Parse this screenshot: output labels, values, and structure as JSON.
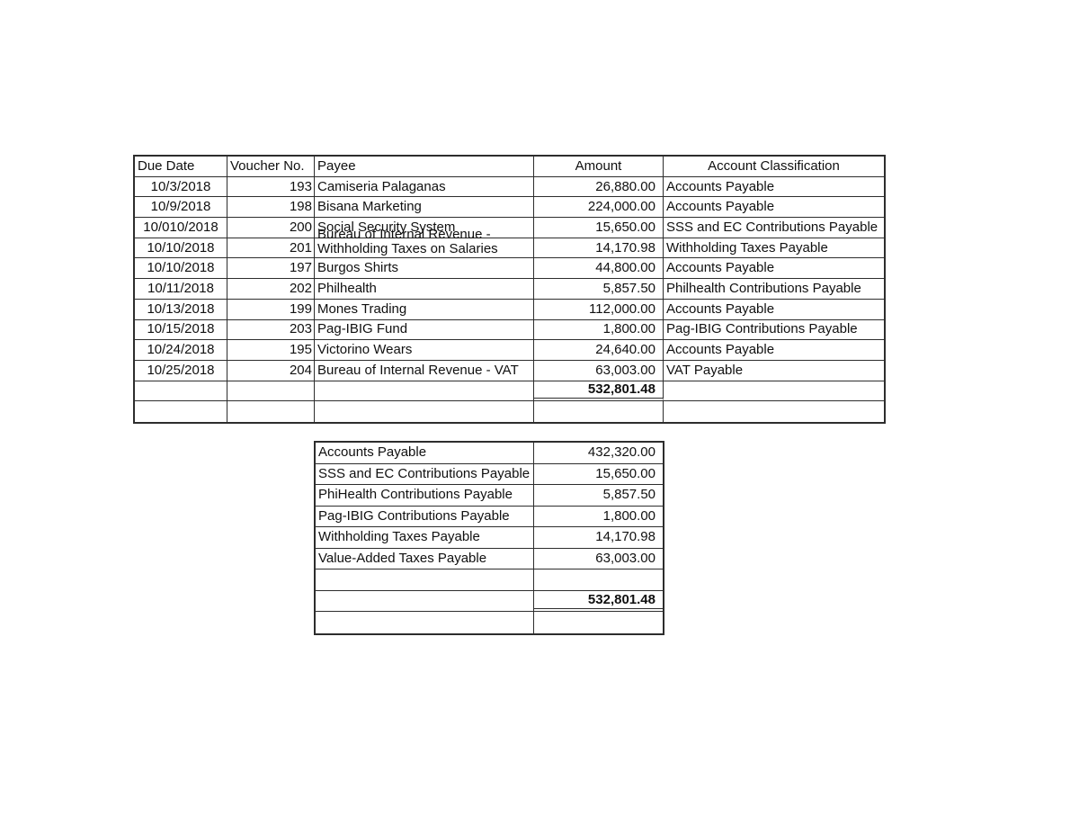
{
  "colors": {
    "background": "#ffffff",
    "border": "#2d2d2d",
    "text": "#101010"
  },
  "voucher_table": {
    "headers": {
      "due_date": "Due Date",
      "voucher_no": "Voucher No.",
      "payee": "Payee",
      "amount": "Amount",
      "classification": "Account Classification"
    },
    "rows": [
      {
        "due_date": "10/3/2018",
        "voucher_no": "193",
        "payee": "Camiseria Palaganas",
        "amount": "26,880.00",
        "classification": "Accounts Payable"
      },
      {
        "due_date": "10/9/2018",
        "voucher_no": "198",
        "payee": "Bisana Marketing",
        "amount": "224,000.00",
        "classification": "Accounts Payable"
      },
      {
        "due_date": "10/010/2018",
        "voucher_no": "200",
        "payee": "Social Security System",
        "amount": "15,650.00",
        "classification": "SSS and EC Contributions Payable"
      },
      {
        "due_date": "10/10/2018",
        "voucher_no": "201",
        "payee_line1": "Bureau of Internal Revenue -",
        "payee_line2": "Withholding Taxes on Salaries",
        "amount": "14,170.98",
        "classification": "Withholding Taxes Payable"
      },
      {
        "due_date": "10/10/2018",
        "voucher_no": "197",
        "payee": "Burgos Shirts",
        "amount": "44,800.00",
        "classification": "Accounts Payable"
      },
      {
        "due_date": "10/11/2018",
        "voucher_no": "202",
        "payee": "Philhealth",
        "amount": "5,857.50",
        "classification": "Philhealth Contributions Payable"
      },
      {
        "due_date": "10/13/2018",
        "voucher_no": "199",
        "payee": "Mones Trading",
        "amount": "112,000.00",
        "classification": "Accounts Payable"
      },
      {
        "due_date": "10/15/2018",
        "voucher_no": "203",
        "payee": "Pag-IBIG Fund",
        "amount": "1,800.00",
        "classification": "Pag-IBIG Contributions Payable"
      },
      {
        "due_date": "10/24/2018",
        "voucher_no": "195",
        "payee": "Victorino Wears",
        "amount": "24,640.00",
        "classification": "Accounts Payable"
      },
      {
        "due_date": "10/25/2018",
        "voucher_no": "204",
        "payee": "Bureau of Internal Revenue - VAT",
        "amount": "63,003.00",
        "classification": "VAT Payable"
      }
    ],
    "total": "532,801.48"
  },
  "summary_table": {
    "rows": [
      {
        "label": "Accounts Payable",
        "amount": "432,320.00"
      },
      {
        "label": "SSS and EC Contributions Payable",
        "amount": "15,650.00"
      },
      {
        "label": "PhiHealth Contributions Payable",
        "amount": "5,857.50"
      },
      {
        "label": "Pag-IBIG Contributions Payable",
        "amount": "1,800.00"
      },
      {
        "label": "Withholding Taxes Payable",
        "amount": "14,170.98"
      },
      {
        "label": "Value-Added Taxes Payable",
        "amount": "63,003.00"
      }
    ],
    "total": "532,801.48"
  }
}
